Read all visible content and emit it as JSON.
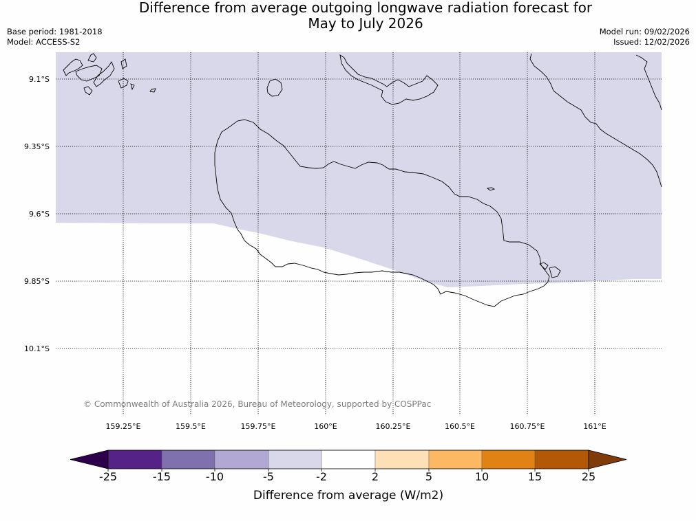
{
  "title": {
    "line1": "Difference from average outgoing longwave radiation forecast for",
    "line2": "May to July 2026"
  },
  "meta": {
    "base_period": "Base period: 1981-2018",
    "model": "Model: ACCESS-S2",
    "model_run": "Model run: 09/02/2026",
    "issued": "Issued: 12/02/2026"
  },
  "map": {
    "lat_labels": [
      "9.1°S",
      "9.35°S",
      "9.6°S",
      "9.85°S",
      "10.1°S"
    ],
    "lon_labels": [
      "159.25°E",
      "159.5°E",
      "159.75°E",
      "160°E",
      "160.25°E",
      "160.5°E",
      "160.75°E",
      "161°E"
    ],
    "credit": "© Commonwealth of Australia 2026, Bureau of Meteorology, supported by COSPPac",
    "shaded_category": "-5 to -2",
    "shaded_color": "#d8d8ea",
    "unshaded_category": "-2 to 2",
    "unshaded_color": "#fefefe"
  },
  "colorbar": {
    "label": "Difference from average (W/m2)",
    "ticks": [
      "-25",
      "-15",
      "-10",
      "-5",
      "-2",
      "2",
      "5",
      "10",
      "15",
      "25"
    ],
    "colors": [
      "#552387",
      "#7f71ad",
      "#b1a9d3",
      "#d8d8ea",
      "#fefefe",
      "#fee0b6",
      "#fdb863",
      "#e08214",
      "#b35806"
    ],
    "extend_low_color": "#2d004b",
    "extend_high_color": "#7f3b08"
  }
}
